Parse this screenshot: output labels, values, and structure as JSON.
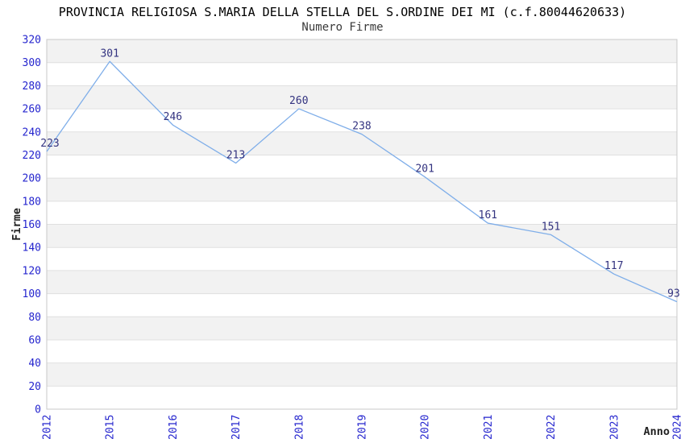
{
  "chart_data": {
    "type": "line",
    "title": "PROVINCIA RELIGIOSA S.MARIA DELLA STELLA DEL S.ORDINE DEI MI (c.f.80044620633)",
    "subtitle": "Numero Firme",
    "xlabel": "Anno",
    "ylabel": "Firme",
    "categories": [
      "2012",
      "2015",
      "2016",
      "2017",
      "2018",
      "2019",
      "2020",
      "2021",
      "2022",
      "2023",
      "2024"
    ],
    "values": [
      223,
      301,
      246,
      213,
      260,
      238,
      201,
      161,
      151,
      117,
      93
    ],
    "ylim": [
      0,
      320
    ],
    "ytick_step": 20,
    "grid": "alternating-horizontal-bands",
    "legend_position": "none",
    "point_labels_visible": true,
    "colors": {
      "line": "#7FAEE9",
      "point_label": "#333380",
      "tick_label": "#2525CE",
      "band": "#F2F2F2",
      "gridline": "#E0E0E0",
      "plot_border": "#C8C8C8",
      "title": "#000000",
      "subtitle": "#3A3A3A",
      "axis_title": "#222222",
      "background": "#FFFFFF"
    }
  }
}
